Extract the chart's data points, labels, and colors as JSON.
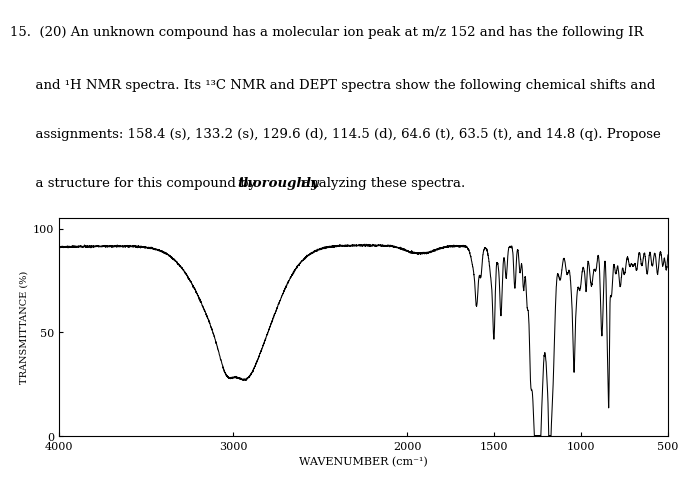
{
  "xlabel": "WAVENUMBER (cm⁻¹)",
  "ylabel": "TRANSMITTANCE (%)",
  "xlim": [
    4000,
    500
  ],
  "ylim": [
    0,
    100
  ],
  "yticks": [
    0,
    50,
    100
  ],
  "xticks": [
    4000,
    3000,
    2000,
    1500,
    1000,
    500
  ],
  "background_color": "#ffffff",
  "line_color": "#000000",
  "line1_label": "15.",
  "line1_a": "(20) An unknown compound has a molecular ion peak at m/z 152 and has the following IR",
  "line2": "and ¹H NMR spectra. Its ¹³C NMR and DEPT spectra show the following chemical shifts and",
  "line3": "assignments: 158.4 (s), 133.2 (s), 129.6 (d), 114.5 (d), 64.6 (t), 63.5 (t), and 14.8 (q). Propose",
  "line4_pre": "a structure for this compound by ",
  "line4_bold": "thoroughly",
  "line4_post": " analyzing these spectra."
}
